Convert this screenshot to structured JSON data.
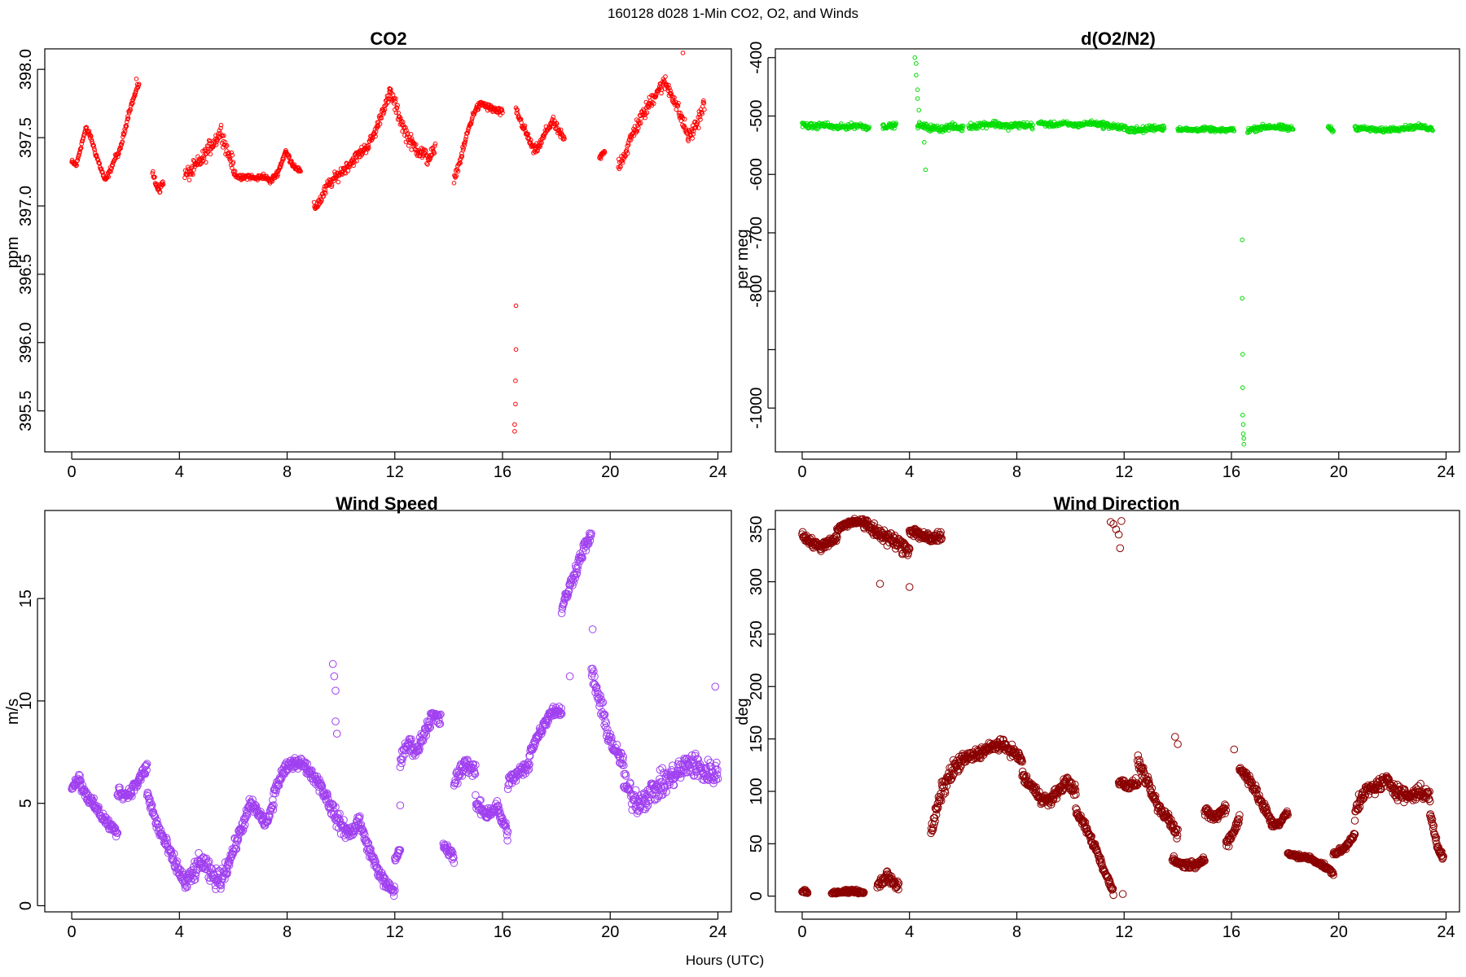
{
  "figure_title": "160128   d028   1-Min CO2, O2, and Winds",
  "xlabel": "Hours (UTC)",
  "chart_data": [
    {
      "type": "scatter",
      "title": "CO2",
      "ylabel": "ppm",
      "color": "#ff0000",
      "xlim": [
        -1,
        24.5
      ],
      "ylim": [
        395.2,
        398.15
      ],
      "xticks": [
        0,
        4,
        8,
        12,
        16,
        20,
        24
      ],
      "yticks": [
        395.5,
        396.0,
        396.5,
        397.0,
        397.5,
        398.0
      ],
      "ytick_labels": [
        "395.5",
        "396.0",
        "396.5",
        "397.0",
        "397.5",
        "398.0"
      ],
      "point_size": "small",
      "segments": [
        {
          "x0": 0.0,
          "x1": 2.5,
          "y": [
            397.32,
            397.3,
            397.45,
            397.57,
            397.5,
            397.38,
            397.28,
            397.18,
            397.26,
            397.35,
            397.4,
            397.55,
            397.7,
            397.8,
            397.9
          ],
          "jitter": 0.03
        },
        {
          "x0": 3.0,
          "x1": 3.4,
          "y": [
            397.25,
            397.15,
            397.12,
            397.18
          ],
          "jitter": 0.04
        },
        {
          "x0": 4.2,
          "x1": 6.0,
          "y": [
            397.22,
            397.25,
            397.3,
            397.35,
            397.42,
            397.48,
            397.55,
            397.4,
            397.3
          ],
          "jitter": 0.08
        },
        {
          "x0": 6.0,
          "x1": 8.5,
          "y": [
            397.25,
            397.2,
            397.22,
            397.2,
            397.22,
            397.18,
            397.25,
            397.4,
            397.3,
            397.25
          ],
          "jitter": 0.03
        },
        {
          "x0": 9.0,
          "x1": 11.8,
          "y": [
            396.98,
            397.05,
            397.15,
            397.2,
            397.25,
            397.3,
            397.35,
            397.4,
            397.45,
            397.55,
            397.7,
            397.8
          ],
          "jitter": 0.06
        },
        {
          "x0": 11.8,
          "x1": 13.5,
          "y": [
            397.85,
            397.7,
            397.55,
            397.45,
            397.4,
            397.35,
            397.4
          ],
          "jitter": 0.08
        },
        {
          "x0": 14.2,
          "x1": 16.0,
          "y": [
            397.2,
            397.35,
            397.55,
            397.7,
            397.75,
            397.72,
            397.7,
            397.68
          ],
          "jitter": 0.04
        },
        {
          "x0": 16.5,
          "x1": 18.3,
          "y": [
            397.7,
            397.6,
            397.5,
            397.4,
            397.45,
            397.55,
            397.62,
            397.55,
            397.48
          ],
          "jitter": 0.05
        },
        {
          "x0": 19.6,
          "x1": 19.8,
          "y": [
            397.35,
            397.4
          ],
          "jitter": 0.03
        },
        {
          "x0": 20.3,
          "x1": 23.5,
          "y": [
            397.3,
            397.4,
            397.55,
            397.65,
            397.75,
            397.85,
            397.9,
            397.8,
            397.65,
            397.5,
            397.6,
            397.75
          ],
          "jitter": 0.08
        }
      ],
      "outliers": [
        {
          "x": 16.45,
          "y": 395.35
        },
        {
          "x": 16.45,
          "y": 395.4
        },
        {
          "x": 16.48,
          "y": 395.55
        },
        {
          "x": 16.48,
          "y": 395.72
        },
        {
          "x": 16.5,
          "y": 395.95
        },
        {
          "x": 16.5,
          "y": 396.27
        },
        {
          "x": 2.4,
          "y": 397.93
        },
        {
          "x": 22.7,
          "y": 398.12
        }
      ]
    },
    {
      "type": "scatter",
      "title": "d(O2/N2)",
      "ylabel": "per meg",
      "color": "#00dd00",
      "xlim": [
        -1,
        24.5
      ],
      "ylim": [
        -1075,
        -385
      ],
      "xticks": [
        0,
        4,
        8,
        12,
        16,
        20,
        24
      ],
      "yticks": [
        -1000,
        -900,
        -800,
        -700,
        -600,
        -500,
        -400
      ],
      "ytick_labels": [
        "-1000",
        "",
        "-800",
        "-700",
        "-600",
        "-500",
        "-400"
      ],
      "point_size": "small",
      "segments": [
        {
          "x0": 0.0,
          "x1": 2.5,
          "y": [
            -515,
            -518,
            -515,
            -520,
            -518,
            -516,
            -520
          ],
          "jitter": 7
        },
        {
          "x0": 3.0,
          "x1": 3.5,
          "y": [
            -518,
            -516
          ],
          "jitter": 6
        },
        {
          "x0": 4.3,
          "x1": 6.0,
          "y": [
            -515,
            -520,
            -522,
            -518,
            -521
          ],
          "jitter": 8
        },
        {
          "x0": 6.2,
          "x1": 8.6,
          "y": [
            -518,
            -515,
            -513,
            -518,
            -515,
            -517
          ],
          "jitter": 8
        },
        {
          "x0": 8.8,
          "x1": 11.2,
          "y": [
            -512,
            -515,
            -513,
            -516,
            -512,
            -514
          ],
          "jitter": 6
        },
        {
          "x0": 11.2,
          "x1": 13.5,
          "y": [
            -515,
            -518,
            -522,
            -525,
            -520,
            -520
          ],
          "jitter": 8
        },
        {
          "x0": 14.0,
          "x1": 16.1,
          "y": [
            -522,
            -524,
            -522,
            -525,
            -523
          ],
          "jitter": 5
        },
        {
          "x0": 16.6,
          "x1": 18.3,
          "y": [
            -525,
            -520,
            -518,
            -520,
            -522
          ],
          "jitter": 7
        },
        {
          "x0": 19.6,
          "x1": 19.8,
          "y": [
            -518,
            -525
          ],
          "jitter": 5
        },
        {
          "x0": 20.6,
          "x1": 23.5,
          "y": [
            -520,
            -522,
            -525,
            -522,
            -520,
            -518,
            -522
          ],
          "jitter": 6
        }
      ],
      "outliers": [
        {
          "x": 4.2,
          "y": -400
        },
        {
          "x": 4.25,
          "y": -410
        },
        {
          "x": 4.25,
          "y": -430
        },
        {
          "x": 4.3,
          "y": -455
        },
        {
          "x": 4.3,
          "y": -470
        },
        {
          "x": 4.35,
          "y": -490
        },
        {
          "x": 4.55,
          "y": -545
        },
        {
          "x": 4.6,
          "y": -592
        },
        {
          "x": 16.4,
          "y": -712
        },
        {
          "x": 16.4,
          "y": -812
        },
        {
          "x": 16.42,
          "y": -908
        },
        {
          "x": 16.42,
          "y": -965
        },
        {
          "x": 16.42,
          "y": -1012
        },
        {
          "x": 16.44,
          "y": -1028
        },
        {
          "x": 16.44,
          "y": -1044
        },
        {
          "x": 16.46,
          "y": -1052
        },
        {
          "x": 16.46,
          "y": -1062
        }
      ]
    },
    {
      "type": "scatter",
      "title": "Wind Speed",
      "ylabel": "m/s",
      "color": "#a040f0",
      "xlim": [
        -1,
        24.5
      ],
      "ylim": [
        -0.3,
        19.3
      ],
      "xticks": [
        0,
        4,
        8,
        12,
        16,
        20,
        24
      ],
      "yticks": [
        0,
        5,
        10,
        15
      ],
      "ytick_labels": [
        "0",
        "5",
        "10",
        "15"
      ],
      "point_size": "large",
      "segments": [
        {
          "x0": 0.0,
          "x1": 0.3,
          "y": [
            5.8,
            6.3
          ],
          "jitter": 0.3
        },
        {
          "x0": 0.3,
          "x1": 1.7,
          "y": [
            6.0,
            5.2,
            4.6,
            4.0,
            3.5
          ],
          "jitter": 0.4
        },
        {
          "x0": 1.7,
          "x1": 2.8,
          "y": [
            5.6,
            5.4,
            6.0,
            6.8
          ],
          "jitter": 0.4
        },
        {
          "x0": 2.8,
          "x1": 4.2,
          "y": [
            5.5,
            4.0,
            3.0,
            2.0,
            1.2
          ],
          "jitter": 0.5
        },
        {
          "x0": 4.2,
          "x1": 5.8,
          "y": [
            1.0,
            1.6,
            2.2,
            1.5,
            1.2,
            2.0
          ],
          "jitter": 0.7
        },
        {
          "x0": 5.8,
          "x1": 7.5,
          "y": [
            2.0,
            3.0,
            4.0,
            5.0,
            4.5,
            4.0,
            5.0
          ],
          "jitter": 0.5
        },
        {
          "x0": 7.5,
          "x1": 9.2,
          "y": [
            5.5,
            6.5,
            7.0,
            7.0,
            6.5,
            6.0
          ],
          "jitter": 0.4
        },
        {
          "x0": 9.2,
          "x1": 10.7,
          "y": [
            6.0,
            5.0,
            4.0,
            3.5,
            4.2
          ],
          "jitter": 0.6
        },
        {
          "x0": 10.7,
          "x1": 12.0,
          "y": [
            4.0,
            2.8,
            1.8,
            1.0,
            0.7
          ],
          "jitter": 0.4
        },
        {
          "x0": 12.0,
          "x1": 12.2,
          "y": [
            2.2,
            2.8
          ],
          "jitter": 0.3
        },
        {
          "x0": 12.2,
          "x1": 13.7,
          "y": [
            7.0,
            8.0,
            7.5,
            8.5,
            9.3,
            9.0
          ],
          "jitter": 0.5
        },
        {
          "x0": 13.8,
          "x1": 14.2,
          "y": [
            3.0,
            2.3
          ],
          "jitter": 0.4
        },
        {
          "x0": 14.2,
          "x1": 15.0,
          "y": [
            6.0,
            7.0,
            6.5
          ],
          "jitter": 0.6
        },
        {
          "x0": 15.0,
          "x1": 16.2,
          "y": [
            5.0,
            4.5,
            4.8,
            3.5
          ],
          "jitter": 0.5
        },
        {
          "x0": 16.2,
          "x1": 17.0,
          "y": [
            6.0,
            6.5,
            6.8
          ],
          "jitter": 0.5
        },
        {
          "x0": 17.0,
          "x1": 18.2,
          "y": [
            7.5,
            8.5,
            9.5,
            9.5
          ],
          "jitter": 0.4
        },
        {
          "x0": 18.2,
          "x1": 19.3,
          "y": [
            14.5,
            15.5,
            16.5,
            17.5,
            18.0
          ],
          "jitter": 0.5
        },
        {
          "x0": 19.3,
          "x1": 20.5,
          "y": [
            11.5,
            10.0,
            8.5,
            7.5,
            7.0
          ],
          "jitter": 0.7
        },
        {
          "x0": 20.5,
          "x1": 24.0,
          "y": [
            6.0,
            5.0,
            5.5,
            6.0,
            6.5,
            7.0,
            6.5,
            6.5
          ],
          "jitter": 0.9
        }
      ],
      "outliers": [
        {
          "x": 9.7,
          "y": 11.8
        },
        {
          "x": 9.75,
          "y": 11.2
        },
        {
          "x": 9.8,
          "y": 10.5
        },
        {
          "x": 9.8,
          "y": 9.0
        },
        {
          "x": 9.85,
          "y": 8.4
        },
        {
          "x": 12.2,
          "y": 4.9
        },
        {
          "x": 18.5,
          "y": 11.2
        },
        {
          "x": 19.35,
          "y": 13.5
        },
        {
          "x": 23.9,
          "y": 10.7
        }
      ]
    },
    {
      "type": "scatter",
      "title": "Wind Direction",
      "ylabel": "deg",
      "color": "#8b0000",
      "xlim": [
        -1,
        24.5
      ],
      "ylim": [
        -15,
        368
      ],
      "xticks": [
        0,
        4,
        8,
        12,
        16,
        20,
        24
      ],
      "yticks": [
        0,
        50,
        100,
        150,
        200,
        250,
        300,
        350
      ],
      "ytick_labels": [
        "0",
        "50",
        "100",
        "150",
        "200",
        "250",
        "300",
        "350"
      ],
      "point_size": "large",
      "segments": [
        {
          "x0": 0.0,
          "x1": 1.3,
          "y": [
            345,
            338,
            333,
            338,
            342
          ],
          "jitter": 6
        },
        {
          "x0": 1.3,
          "x1": 2.3,
          "y": [
            350,
            355,
            358,
            357
          ],
          "jitter": 4
        },
        {
          "x0": 2.3,
          "x1": 4.0,
          "y": [
            355,
            350,
            345,
            340,
            335,
            330
          ],
          "jitter": 10
        },
        {
          "x0": 4.0,
          "x1": 5.2,
          "y": [
            350,
            345,
            340,
            345
          ],
          "jitter": 8
        },
        {
          "x0": 0.0,
          "x1": 0.2,
          "y": [
            5,
            4
          ],
          "jitter": 2
        },
        {
          "x0": 1.1,
          "x1": 2.3,
          "y": [
            3,
            4,
            5,
            3
          ],
          "jitter": 2
        },
        {
          "x0": 2.8,
          "x1": 3.6,
          "y": [
            10,
            20,
            8
          ],
          "jitter": 8
        },
        {
          "x0": 4.8,
          "x1": 6.0,
          "y": [
            60,
            100,
            120,
            130
          ],
          "jitter": 12
        },
        {
          "x0": 6.0,
          "x1": 8.2,
          "y": [
            130,
            135,
            140,
            145,
            140,
            130
          ],
          "jitter": 8
        },
        {
          "x0": 8.2,
          "x1": 10.2,
          "y": [
            115,
            105,
            95,
            90,
            100,
            110,
            100
          ],
          "jitter": 8
        },
        {
          "x0": 10.2,
          "x1": 11.6,
          "y": [
            80,
            70,
            55,
            40,
            20,
            5
          ],
          "jitter": 6
        },
        {
          "x0": 11.8,
          "x1": 12.5,
          "y": [
            110,
            105,
            108
          ],
          "jitter": 6
        },
        {
          "x0": 12.5,
          "x1": 13.5,
          "y": [
            130,
            110,
            90,
            75
          ],
          "jitter": 8
        },
        {
          "x0": 13.5,
          "x1": 14.0,
          "y": [
            80,
            60
          ],
          "jitter": 8
        },
        {
          "x0": 13.8,
          "x1": 15.0,
          "y": [
            35,
            30,
            30,
            35
          ],
          "jitter": 5
        },
        {
          "x0": 15.0,
          "x1": 15.8,
          "y": [
            80,
            75,
            85
          ],
          "jitter": 7
        },
        {
          "x0": 15.8,
          "x1": 16.3,
          "y": [
            50,
            60,
            75
          ],
          "jitter": 8
        },
        {
          "x0": 16.3,
          "x1": 17.5,
          "y": [
            120,
            115,
            100,
            85,
            70
          ],
          "jitter": 8
        },
        {
          "x0": 17.5,
          "x1": 18.1,
          "y": [
            68,
            70,
            80
          ],
          "jitter": 4
        },
        {
          "x0": 18.1,
          "x1": 19.8,
          "y": [
            40,
            38,
            36,
            30,
            22
          ],
          "jitter": 3
        },
        {
          "x0": 19.8,
          "x1": 20.6,
          "y": [
            40,
            45,
            60
          ],
          "jitter": 4
        },
        {
          "x0": 20.6,
          "x1": 23.4,
          "y": [
            80,
            100,
            105,
            110,
            100,
            95,
            100,
            95
          ],
          "jitter": 10
        },
        {
          "x0": 23.4,
          "x1": 23.9,
          "y": [
            80,
            50,
            35
          ],
          "jitter": 6
        }
      ],
      "outliers": [
        {
          "x": 11.5,
          "y": 357
        },
        {
          "x": 11.6,
          "y": 355
        },
        {
          "x": 11.7,
          "y": 350
        },
        {
          "x": 11.8,
          "y": 345
        },
        {
          "x": 11.85,
          "y": 332
        },
        {
          "x": 11.9,
          "y": 358
        },
        {
          "x": 11.95,
          "y": 2
        },
        {
          "x": 13.9,
          "y": 152
        },
        {
          "x": 14.0,
          "y": 145
        },
        {
          "x": 4.0,
          "y": 295
        },
        {
          "x": 2.9,
          "y": 298
        },
        {
          "x": 16.1,
          "y": 140
        }
      ]
    }
  ]
}
